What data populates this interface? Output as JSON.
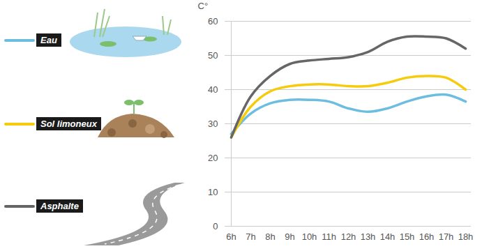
{
  "chart_data": {
    "type": "line",
    "ylabel": "C°",
    "x": [
      "6h",
      "7h",
      "8h",
      "9h",
      "10h",
      "11h",
      "12h",
      "13h",
      "14h",
      "15h",
      "16h",
      "17h",
      "18h"
    ],
    "series": [
      {
        "name": "Eau",
        "color": "#6dbde0",
        "values": [
          27,
          33,
          36,
          37,
          37,
          36.5,
          34.5,
          33.5,
          34.5,
          36.5,
          38,
          38.5,
          36.5
        ]
      },
      {
        "name": "Sol limoneux",
        "color": "#f5cb0c",
        "values": [
          26,
          35,
          39.5,
          41,
          41.5,
          41.5,
          41,
          41,
          42,
          43.5,
          44,
          43.5,
          40
        ]
      },
      {
        "name": "Asphalte",
        "color": "#666666",
        "values": [
          26,
          38,
          44,
          47.5,
          48.5,
          49,
          49.5,
          51,
          54,
          55.5,
          55.5,
          55,
          52
        ]
      }
    ],
    "ylim": [
      0,
      60
    ],
    "yticks": [
      0,
      10,
      20,
      30,
      40,
      50,
      60
    ],
    "grid": true,
    "legend": "left"
  }
}
